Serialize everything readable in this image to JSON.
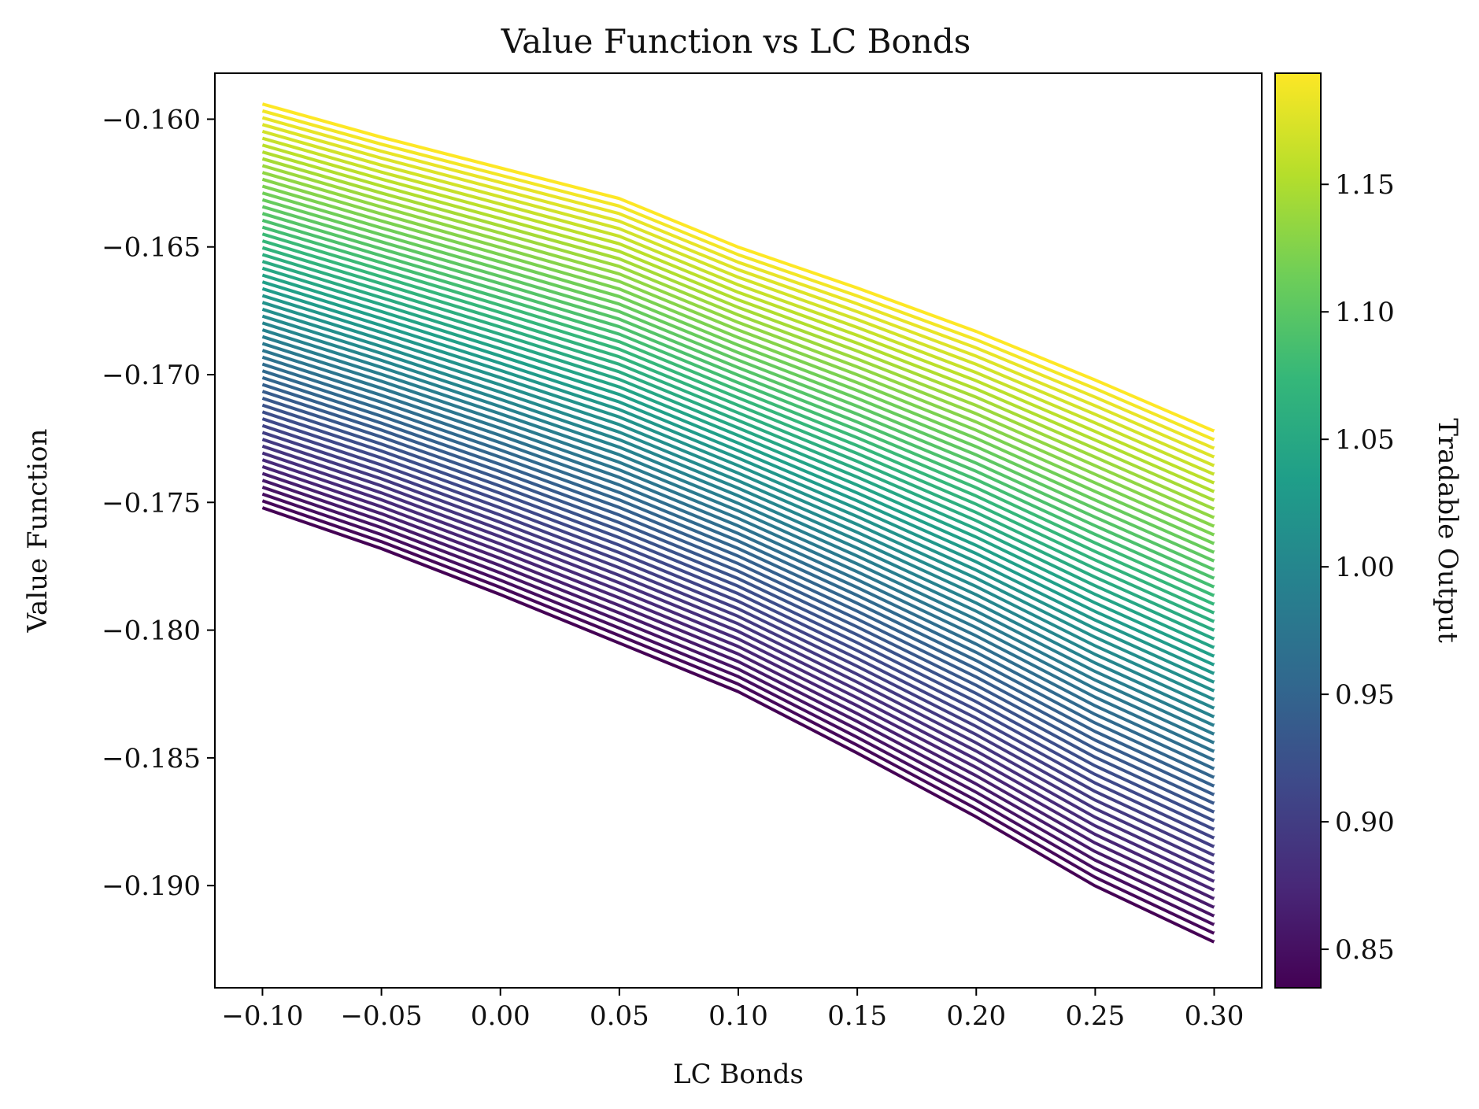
{
  "chart_data": {
    "type": "line",
    "title": "Value Function vs LC Bonds",
    "xlabel": "LC Bonds",
    "ylabel": "Value Function",
    "xlim": [
      -0.12,
      0.32
    ],
    "ylim": [
      -0.194,
      -0.1582
    ],
    "xticks": [
      -0.1,
      -0.05,
      0.0,
      0.05,
      0.1,
      0.15,
      0.2,
      0.25,
      0.3
    ],
    "xtick_labels": [
      "−0.10",
      "−0.05",
      "0.00",
      "0.05",
      "0.10",
      "0.15",
      "0.20",
      "0.25",
      "0.30"
    ],
    "yticks": [
      -0.16,
      -0.165,
      -0.17,
      -0.175,
      -0.18,
      -0.185,
      -0.19
    ],
    "ytick_labels": [
      "−0.160",
      "−0.165",
      "−0.170",
      "−0.175",
      "−0.180",
      "−0.185",
      "−0.190"
    ],
    "grid": false,
    "series_count": 60,
    "x": [
      -0.1,
      -0.05,
      0.0,
      0.05,
      0.1,
      0.15,
      0.2,
      0.25,
      0.3
    ],
    "series_bottom": {
      "color_value": 0.8349,
      "values": [
        -0.1752,
        -0.1768,
        -0.1786,
        -0.1805,
        -0.1824,
        -0.1848,
        -0.1873,
        -0.19,
        -0.1922
      ]
    },
    "series_top": {
      "color_value": 1.1936,
      "values": [
        -0.1594,
        -0.1607,
        -0.1619,
        -0.1631,
        -0.165,
        -0.1666,
        -0.1683,
        -0.1702,
        -0.1722
      ]
    },
    "colorbar": {
      "label": "Tradable Output",
      "range": [
        0.8349,
        1.1936
      ],
      "ticks": [
        0.85,
        0.9,
        0.95,
        1.0,
        1.05,
        1.1,
        1.15
      ],
      "tick_labels": [
        "0.85",
        "0.90",
        "0.95",
        "1.00",
        "1.05",
        "1.10",
        "1.15"
      ],
      "colormap": "viridis",
      "colormap_stops": [
        "#440154",
        "#482878",
        "#3e4989",
        "#31688e",
        "#26828e",
        "#1f9e89",
        "#35b779",
        "#6ece58",
        "#b5de2b",
        "#fde725"
      ]
    }
  }
}
